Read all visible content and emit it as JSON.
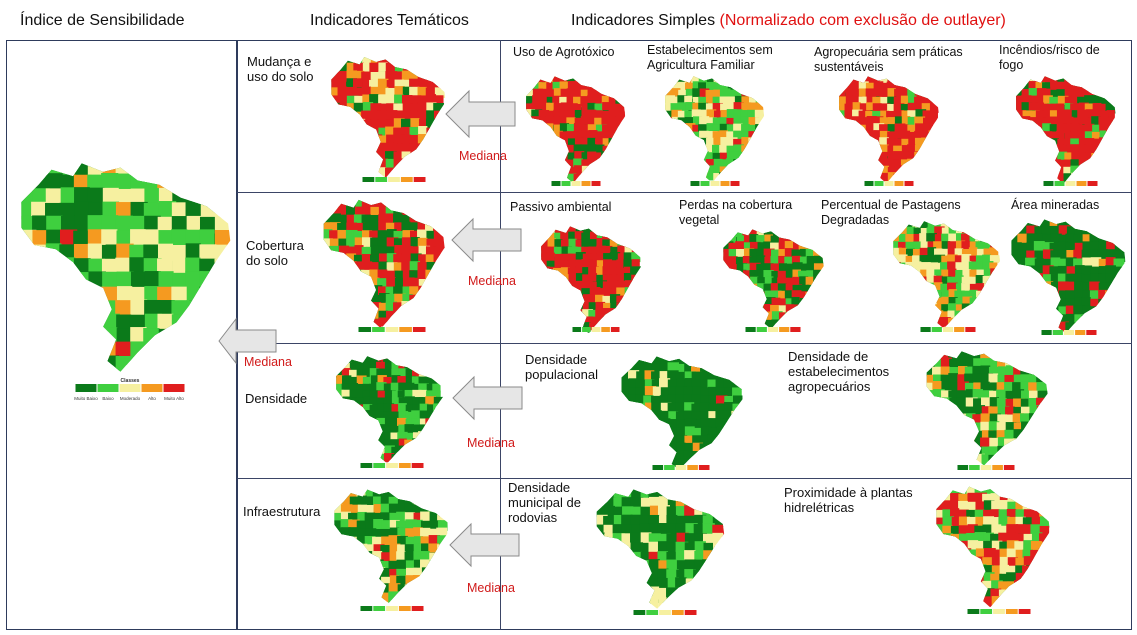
{
  "headers": {
    "sensibilidade": "Índice de Sensibilidade",
    "tematicos": "Indicadores Temáticos",
    "simples": "Indicadores Simples",
    "simples_note": "(Normalizado com exclusão de outlayer)"
  },
  "median_label": "Mediana",
  "legend": {
    "title": "Classes",
    "classes": [
      "Muito Baixo",
      "Baixo",
      "Moderado",
      "Alto",
      "Muito Alto"
    ],
    "colors": [
      "#0b7a1a",
      "#3fcf3f",
      "#f6f0a0",
      "#f59a20",
      "#e01e1e"
    ]
  },
  "rows": [
    {
      "theme": "Mudança    e uso do solo",
      "simple": [
        "Uso de Agrotóxico",
        "Estabelecimentos sem Agricultura Familiar",
        "Agropecuária sem práticas sustentáveis",
        "Incêndios/risco de fogo"
      ]
    },
    {
      "theme": "Cobertura do solo",
      "simple": [
        "Passivo ambiental",
        "Perdas na cobertura vegetal",
        "Percentual de Pastagens Degradadas",
        "Área mineradas"
      ]
    },
    {
      "theme": "Densidade",
      "simple": [
        "Densidade populacional",
        "Densidade de estabelecimentos agropecuários"
      ]
    },
    {
      "theme": "Infraestrutura",
      "simple": [
        "Densidade municipal de rodovias",
        "Proximidade à plantas hidrelétricas"
      ]
    }
  ]
}
